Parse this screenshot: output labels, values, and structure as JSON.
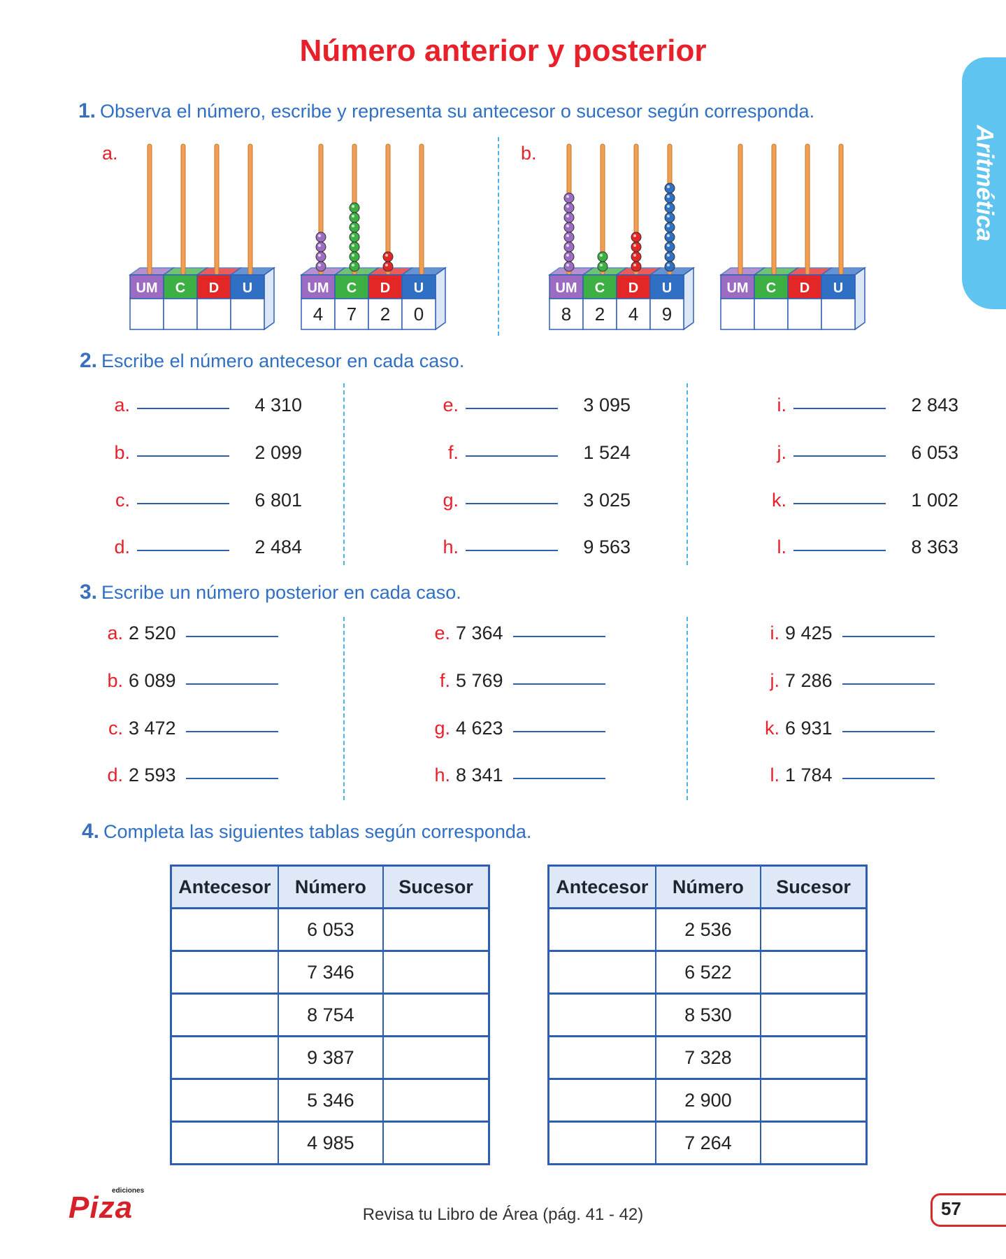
{
  "title": "Número anterior y posterior",
  "side_tab": "Aritmética",
  "ex1": {
    "num": "1.",
    "text": "Observa el número, escribe y representa su antecesor o sucesor según corresponda.",
    "a_label": "a.",
    "b_label": "b.",
    "headers": [
      "UM",
      "C",
      "D",
      "U"
    ],
    "a_given": [
      "4",
      "7",
      "2",
      "0"
    ],
    "b_given": [
      "8",
      "2",
      "4",
      "9"
    ],
    "colors": {
      "um": "#9b6cc1",
      "c": "#3cb043",
      "d": "#e32626",
      "u": "#2f6fc4"
    }
  },
  "ex2": {
    "num": "2.",
    "text": "Escribe el número antecesor en cada caso.",
    "cols": [
      [
        [
          "a.",
          "4 310"
        ],
        [
          "b.",
          "2 099"
        ],
        [
          "c.",
          "6 801"
        ],
        [
          "d.",
          "2 484"
        ]
      ],
      [
        [
          "e.",
          "3 095"
        ],
        [
          "f.",
          "1 524"
        ],
        [
          "g.",
          "3 025"
        ],
        [
          "h.",
          "9 563"
        ]
      ],
      [
        [
          "i.",
          "2 843"
        ],
        [
          "j.",
          "6 053"
        ],
        [
          "k.",
          "1 002"
        ],
        [
          "l.",
          "8 363"
        ]
      ]
    ]
  },
  "ex3": {
    "num": "3.",
    "text": "Escribe un número posterior en cada caso.",
    "cols": [
      [
        [
          "a.",
          "2 520"
        ],
        [
          "b.",
          "6 089"
        ],
        [
          "c.",
          "3 472"
        ],
        [
          "d.",
          "2 593"
        ]
      ],
      [
        [
          "e.",
          "7 364"
        ],
        [
          "f.",
          "5 769"
        ],
        [
          "g.",
          "4 623"
        ],
        [
          "h.",
          "8 341"
        ]
      ],
      [
        [
          "i.",
          "9 425"
        ],
        [
          "j.",
          "7 286"
        ],
        [
          "k.",
          "6 931"
        ],
        [
          "l.",
          "1 784"
        ]
      ]
    ]
  },
  "ex4": {
    "num": "4.",
    "text": "Completa las siguientes tablas según corresponda.",
    "headers": [
      "Antecesor",
      "Número",
      "Sucesor"
    ],
    "table1": [
      "6 053",
      "7 346",
      "8 754",
      "9 387",
      "5 346",
      "4 985"
    ],
    "table2": [
      "2 536",
      "6 522",
      "8 530",
      "7 328",
      "2 900",
      "7 264"
    ]
  },
  "footer": "Revisa tu Libro de Área (pág. 41 - 42)",
  "page_number": "57",
  "logo": "Piza",
  "logo_sub": "ediciones"
}
